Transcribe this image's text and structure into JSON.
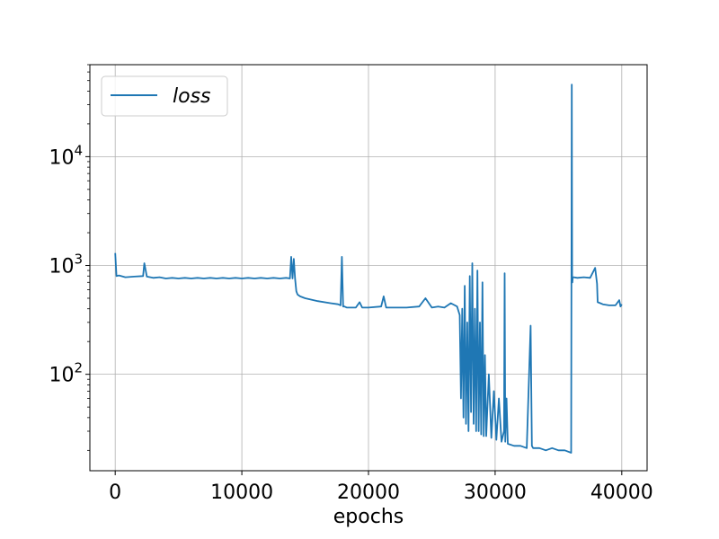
{
  "chart_data": {
    "type": "line",
    "title": "",
    "xlabel": "epochs",
    "ylabel": "",
    "yscale": "log",
    "grid": true,
    "xlim": [
      -2000,
      42000
    ],
    "ylim": [
      13,
      70000
    ],
    "xticks": [
      {
        "value": 0,
        "label": "0"
      },
      {
        "value": 10000,
        "label": "10000"
      },
      {
        "value": 20000,
        "label": "20000"
      },
      {
        "value": 30000,
        "label": "30000"
      },
      {
        "value": 40000,
        "label": "40000"
      }
    ],
    "yticks": [
      {
        "value": 100,
        "base": "10",
        "exp": "2"
      },
      {
        "value": 1000,
        "base": "10",
        "exp": "3"
      },
      {
        "value": 10000,
        "base": "10",
        "exp": "4"
      }
    ],
    "legend": {
      "position": "top-left"
    },
    "series": [
      {
        "name": "loss",
        "color": "#1f77b4",
        "x": [
          0,
          100,
          300,
          800,
          1500,
          2200,
          2300,
          2500,
          3000,
          3500,
          4000,
          4500,
          5000,
          5500,
          6000,
          6500,
          7000,
          7500,
          8000,
          8500,
          9000,
          9500,
          10000,
          10500,
          11000,
          11500,
          12000,
          12500,
          13000,
          13500,
          13800,
          13900,
          14000,
          14100,
          14200,
          14300,
          14400,
          14600,
          15000,
          16000,
          17000,
          17600,
          17800,
          17900,
          18000,
          18100,
          18300,
          19000,
          19300,
          19500,
          20000,
          21000,
          21200,
          21400,
          22000,
          23000,
          24000,
          24500,
          25000,
          25500,
          26000,
          26500,
          27000,
          27200,
          27300,
          27400,
          27500,
          27600,
          27700,
          27800,
          27900,
          28000,
          28100,
          28200,
          28300,
          28400,
          28500,
          28600,
          28700,
          28800,
          28900,
          29000,
          29100,
          29200,
          29300,
          29500,
          29700,
          29900,
          30100,
          30300,
          30500,
          30700,
          30750,
          30800,
          30900,
          31000,
          31500,
          32000,
          32500,
          32800,
          32900,
          33000,
          33500,
          34000,
          34500,
          35000,
          35500,
          36000,
          36050,
          36080,
          36100,
          36130,
          36200,
          36500,
          37000,
          37500,
          37900,
          38000,
          38050,
          38100,
          38300,
          38500,
          39000,
          39500,
          39800,
          39900,
          40000
        ],
        "y": [
          1300,
          800,
          810,
          780,
          790,
          800,
          1050,
          790,
          770,
          780,
          760,
          770,
          760,
          770,
          760,
          770,
          760,
          770,
          760,
          770,
          760,
          770,
          760,
          770,
          760,
          770,
          760,
          770,
          760,
          770,
          760,
          1200,
          760,
          1150,
          760,
          580,
          540,
          520,
          500,
          470,
          450,
          440,
          430,
          1200,
          420,
          420,
          410,
          410,
          460,
          410,
          410,
          420,
          520,
          410,
          410,
          410,
          420,
          500,
          410,
          420,
          410,
          450,
          420,
          350,
          60,
          400,
          40,
          650,
          35,
          300,
          30,
          800,
          45,
          1050,
          35,
          400,
          30,
          900,
          30,
          300,
          28,
          700,
          27,
          150,
          27,
          100,
          26,
          70,
          25,
          60,
          24,
          30,
          850,
          24,
          60,
          23,
          22,
          22,
          21,
          280,
          22,
          21,
          21,
          20,
          21,
          20,
          20,
          19,
          46000,
          800,
          700,
          780,
          780,
          770,
          780,
          770,
          950,
          760,
          680,
          460,
          450,
          440,
          430,
          430,
          480,
          420,
          440
        ]
      }
    ]
  }
}
